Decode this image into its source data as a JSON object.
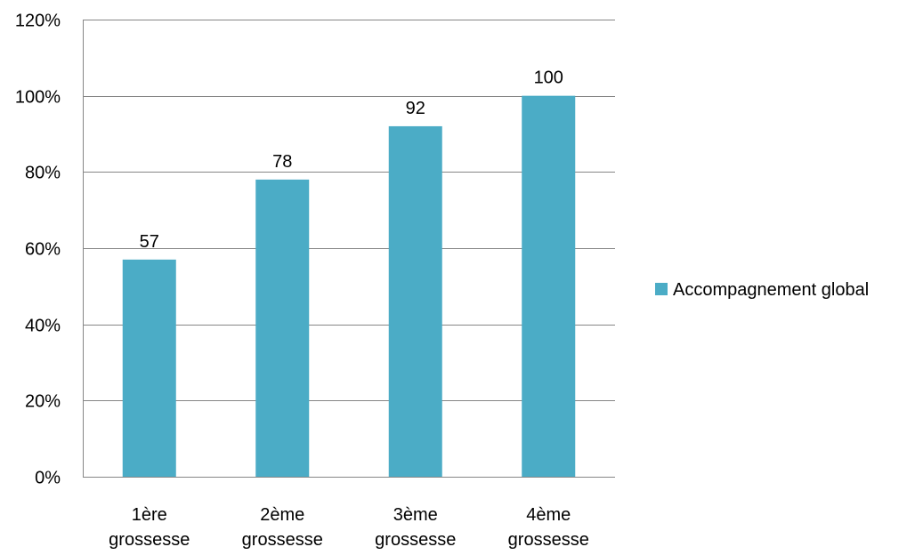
{
  "chart_data": {
    "type": "bar",
    "categories": [
      [
        "1ère",
        "grossesse"
      ],
      [
        "2ème",
        "grossesse"
      ],
      [
        "3ème",
        "grossesse"
      ],
      [
        "4ème",
        "grossesse"
      ]
    ],
    "series": [
      {
        "name": "Accompagnement global",
        "values": [
          57,
          78,
          92,
          100
        ],
        "color": "#4BACC6"
      }
    ],
    "data_labels": [
      "57",
      "78",
      "92",
      "100"
    ],
    "y_ticks": [
      "0%",
      "20%",
      "40%",
      "60%",
      "80%",
      "100%",
      "120%"
    ],
    "y_tick_values": [
      0,
      20,
      40,
      60,
      80,
      100,
      120
    ],
    "ylim": [
      0,
      120
    ],
    "grid": true,
    "gridline_color": "#868686",
    "legend_position": "right"
  }
}
